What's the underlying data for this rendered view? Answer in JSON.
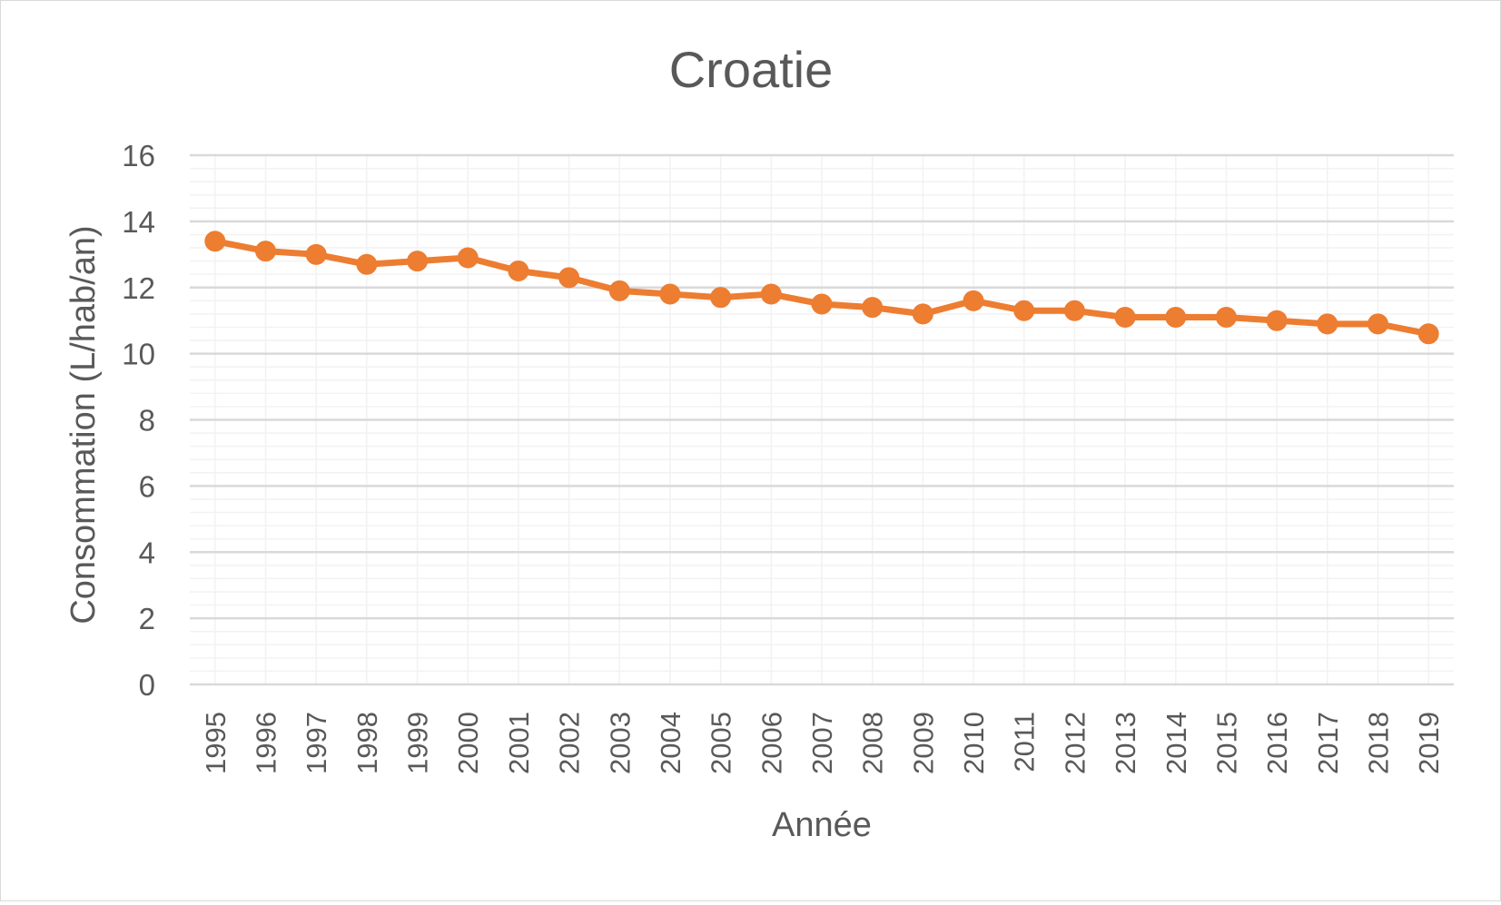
{
  "chart_data": {
    "type": "line",
    "title": "Croatie",
    "xlabel": "Année",
    "ylabel": "Consommation (L/hab/an)",
    "ylim": [
      0,
      16
    ],
    "y_ticks": [
      "0",
      "2",
      "4",
      "6",
      "8",
      "10",
      "12",
      "14",
      "16"
    ],
    "y_minor_step": 0.4,
    "categories": [
      "1995",
      "1996",
      "1997",
      "1998",
      "1999",
      "2000",
      "2001",
      "2002",
      "2003",
      "2004",
      "2005",
      "2006",
      "2007",
      "2008",
      "2009",
      "2010",
      "2011",
      "2012",
      "2013",
      "2014",
      "2015",
      "2016",
      "2017",
      "2018",
      "2019"
    ],
    "series": [
      {
        "values": [
          13.4,
          13.1,
          13.0,
          12.7,
          12.8,
          12.9,
          12.5,
          12.3,
          11.9,
          11.8,
          11.7,
          11.8,
          11.5,
          11.4,
          11.2,
          11.6,
          11.3,
          11.3,
          11.1,
          11.1,
          11.1,
          11.0,
          10.9,
          10.9,
          10.6
        ],
        "color": "#ED7D31"
      }
    ],
    "grid": true,
    "legend": "none"
  },
  "colors": {
    "line": "#ED7D31",
    "major_grid": "#d9d9d9",
    "minor_grid": "#f2f2f2",
    "text": "#595959"
  }
}
